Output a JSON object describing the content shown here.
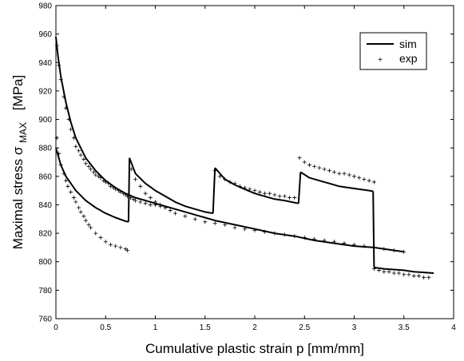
{
  "chart_data": {
    "type": "line",
    "xlabel": "Cumulative plastic strain p [mm/mm]",
    "ylabel": "Maximal stress σMAX [MPa]",
    "ylabel_main": "Maximal stress σ",
    "ylabel_sub": "MAX",
    "ylabel_unit": "[MPa]",
    "xlim": [
      0,
      4
    ],
    "ylim": [
      760,
      980
    ],
    "xticks": [
      0,
      0.5,
      1,
      1.5,
      2,
      2.5,
      3,
      3.5,
      4
    ],
    "xtick_labels": [
      "0",
      "0.5",
      "1",
      "1.5",
      "2",
      "2.5",
      "3",
      "3.5",
      "4"
    ],
    "yticks": [
      760,
      780,
      800,
      820,
      840,
      860,
      880,
      900,
      920,
      940,
      960,
      980
    ],
    "ytick_labels": [
      "760",
      "780",
      "800",
      "820",
      "840",
      "860",
      "880",
      "900",
      "920",
      "940",
      "960",
      "980"
    ],
    "grid": false,
    "legend": {
      "position": "top-right",
      "entries": [
        "sim",
        "exp"
      ]
    },
    "series": [
      {
        "name": "sim",
        "style": "line",
        "segments": [
          {
            "x": [
              0,
              0.05,
              0.1,
              0.2,
              0.3,
              0.4,
              0.5,
              0.6,
              0.7,
              0.73
            ],
            "y": [
              880,
              868,
              860,
              850,
              843,
              838,
              834,
              831,
              828.5,
              828
            ]
          },
          {
            "x": [
              0.73,
              0.74
            ],
            "y": [
              828,
              873
            ]
          },
          {
            "x": [
              0.74,
              0.8,
              0.9,
              1.0,
              1.1,
              1.2,
              1.3,
              1.4,
              1.5,
              1.58
            ],
            "y": [
              873,
              862,
              855,
              850,
              846,
              842,
              839,
              837,
              835,
              834
            ]
          },
          {
            "x": [
              1.58,
              1.6
            ],
            "y": [
              834,
              866
            ]
          },
          {
            "x": [
              1.6,
              1.7,
              1.8,
              1.9,
              2.0,
              2.1,
              2.2,
              2.3,
              2.44
            ],
            "y": [
              866,
              858,
              854,
              851,
              848,
              846,
              844,
              843,
              841
            ]
          },
          {
            "x": [
              2.44,
              2.46
            ],
            "y": [
              841,
              863
            ]
          },
          {
            "x": [
              2.46,
              2.55,
              2.65,
              2.75,
              2.85,
              2.95,
              3.05,
              3.15,
              3.19
            ],
            "y": [
              863,
              859,
              857,
              855,
              853,
              852,
              851,
              850,
              849.5
            ]
          },
          {
            "x": [
              3.19,
              3.2
            ],
            "y": [
              849.5,
              796
            ]
          },
          {
            "x": [
              3.2,
              3.3,
              3.4,
              3.5,
              3.6,
              3.7,
              3.8
            ],
            "y": [
              796,
              795,
              794.5,
              794,
              793,
              792.5,
              792
            ]
          }
        ]
      },
      {
        "name": "sim",
        "style": "line",
        "segments": [
          {
            "x": [
              0,
              0.02,
              0.05,
              0.1,
              0.15,
              0.2,
              0.3,
              0.4,
              0.5,
              0.6,
              0.7,
              0.8,
              0.9,
              1.0,
              1.2,
              1.4,
              1.6,
              1.8,
              2.0,
              2.2,
              2.4,
              2.6,
              2.8,
              3.0,
              3.2,
              3.4,
              3.5
            ],
            "y": [
              958,
              945,
              930,
              912,
              898,
              887,
              873,
              864,
              857,
              852,
              848,
              845,
              843,
              841,
              837,
              833,
              829,
              826,
              823,
              820,
              818,
              815,
              813,
              811,
              810,
              808,
              807
            ]
          }
        ]
      },
      {
        "name": "exp",
        "style": "marker",
        "segments": [
          {
            "x": [
              0.01,
              0.03,
              0.05,
              0.08,
              0.1,
              0.13,
              0.15,
              0.18,
              0.2,
              0.23,
              0.25,
              0.28,
              0.3,
              0.33,
              0.35,
              0.38,
              0.4,
              0.43,
              0.45,
              0.48,
              0.5,
              0.53,
              0.55,
              0.58,
              0.6,
              0.63,
              0.65,
              0.68,
              0.7,
              0.72,
              0.75,
              0.78,
              0.8,
              0.85,
              0.9,
              0.95,
              1.0,
              1.05,
              1.1
            ],
            "y": [
              952,
              938,
              928,
              916,
              908,
              900,
              893,
              887,
              881,
              878,
              875,
              872,
              869,
              867,
              865,
              863,
              861,
              860,
              859,
              857,
              856,
              855,
              853,
              852,
              851,
              850,
              849,
              848,
              847,
              846,
              845,
              844,
              843,
              842,
              841,
              840,
              840,
              839,
              838
            ]
          },
          {
            "x": [
              0.01,
              0.03,
              0.05,
              0.08,
              0.1,
              0.12,
              0.15,
              0.18,
              0.2,
              0.23,
              0.25,
              0.28,
              0.3,
              0.33,
              0.35,
              0.4,
              0.45,
              0.5,
              0.55,
              0.6,
              0.65,
              0.7,
              0.72
            ],
            "y": [
              887,
              876,
              868,
              862,
              857,
              853,
              849,
              845,
              842,
              838,
              835,
              832,
              829,
              826,
              824,
              820,
              817,
              814,
              812,
              811,
              810,
              809,
              808
            ]
          },
          {
            "x": [
              0.76,
              0.8,
              0.85,
              0.9,
              0.95,
              1.0,
              1.05,
              1.1,
              1.15,
              1.2,
              1.3,
              1.4,
              1.5,
              1.6,
              1.7,
              1.8,
              1.9,
              2.0,
              2.1,
              2.2,
              2.3,
              2.4,
              2.5,
              2.6,
              2.7,
              2.8,
              2.9,
              3.0,
              3.1,
              3.2,
              3.3,
              3.4,
              3.5
            ],
            "y": [
              865,
              858,
              853,
              848,
              845,
              842,
              840,
              838,
              836,
              834,
              832,
              830,
              828,
              827,
              826,
              824,
              823,
              822,
              821,
              820,
              819,
              818,
              817,
              816,
              815,
              814,
              813,
              812,
              811,
              810,
              809,
              808,
              807
            ]
          },
          {
            "x": [
              1.6,
              1.65,
              1.7,
              1.75,
              1.8,
              1.85,
              1.9,
              1.95,
              2.0,
              2.05,
              2.1,
              2.15,
              2.2,
              2.25,
              2.3,
              2.35,
              2.4
            ],
            "y": [
              864,
              860,
              858,
              856,
              855,
              853,
              852,
              851,
              850,
              849,
              848,
              848,
              847,
              846,
              846,
              845,
              845
            ]
          },
          {
            "x": [
              2.45,
              2.5,
              2.55,
              2.6,
              2.65,
              2.7,
              2.75,
              2.8,
              2.85,
              2.9,
              2.95,
              3.0,
              3.05,
              3.1,
              3.15,
              3.2
            ],
            "y": [
              873,
              870,
              868,
              867,
              866,
              865,
              864,
              863,
              862,
              862,
              861,
              860,
              859,
              858,
              857,
              856
            ]
          },
          {
            "x": [
              3.2,
              3.25,
              3.3,
              3.35,
              3.4,
              3.45,
              3.5,
              3.55,
              3.6,
              3.65,
              3.7,
              3.75
            ],
            "y": [
              795,
              794,
              793,
              793,
              792,
              792,
              791,
              791,
              790,
              790,
              789,
              789
            ]
          }
        ]
      }
    ]
  }
}
